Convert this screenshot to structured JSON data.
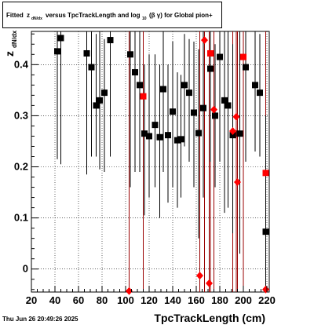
{
  "chart_data": {
    "type": "scatter",
    "title": {
      "prefix": "Fitted",
      "zsym": "z",
      "zsub": "dN/dx",
      "mid": "versus TpcTrackLength and log",
      "logsub": "10",
      "paren": "(β γ) for Global pion+"
    },
    "xlabel": "TpcTrackLength (cm)",
    "ylabel": "z",
    "ylabel_sub": "dN/dx",
    "xlim": [
      20,
      222
    ],
    "ylim": [
      -0.045,
      0.465
    ],
    "x_ticks": [
      20,
      40,
      60,
      80,
      100,
      120,
      140,
      160,
      180,
      200,
      220
    ],
    "y_ticks": [
      0,
      0.1,
      0.2,
      0.3,
      0.4
    ],
    "y_tick_labels": [
      "0",
      "0.1",
      "0.2",
      "0.3",
      "0.4"
    ],
    "grid": true,
    "timestamp": "Thu Jun 26 20:49:26 2025",
    "colors": {
      "black_series": "#000000",
      "red_series": "#ff0000",
      "red_line": "#990000"
    },
    "series": [
      {
        "marker": "square",
        "color": "#000000",
        "points": [
          {
            "x": 42,
            "y": 0.426,
            "lo": 0.215,
            "hi": 0.465
          },
          {
            "x": 45,
            "y": 0.452,
            "lo": 0.205,
            "hi": 0.465
          },
          {
            "x": 67,
            "y": 0.422,
            "lo": 0.185,
            "hi": 0.465
          },
          {
            "x": 71,
            "y": 0.395,
            "lo": 0.22,
            "hi": 0.465
          },
          {
            "x": 75,
            "y": 0.32,
            "lo": 0.22,
            "hi": 0.46
          },
          {
            "x": 78,
            "y": 0.33,
            "lo": 0.195,
            "hi": 0.465
          },
          {
            "x": 82,
            "y": 0.345,
            "lo": 0.19,
            "hi": 0.45
          },
          {
            "x": 87,
            "y": 0.448,
            "lo": 0.22,
            "hi": 0.465
          },
          {
            "x": 104,
            "y": 0.42,
            "lo": 0.16,
            "hi": 0.465
          },
          {
            "x": 108,
            "y": 0.385,
            "lo": 0.19,
            "hi": 0.465
          },
          {
            "x": 112,
            "y": 0.36,
            "lo": 0.19,
            "hi": 0.465
          },
          {
            "x": 116,
            "y": 0.265,
            "lo": 0.105,
            "hi": 0.4
          },
          {
            "x": 120,
            "y": 0.26,
            "lo": 0.14,
            "hi": 0.42
          },
          {
            "x": 125,
            "y": 0.282,
            "lo": 0.16,
            "hi": 0.42
          },
          {
            "x": 129,
            "y": 0.258,
            "lo": 0.1,
            "hi": 0.4
          },
          {
            "x": 132,
            "y": 0.352,
            "lo": 0.19,
            "hi": 0.465
          },
          {
            "x": 136,
            "y": 0.262,
            "lo": 0.13,
            "hi": 0.4
          },
          {
            "x": 140,
            "y": 0.308,
            "lo": 0.16,
            "hi": 0.445
          },
          {
            "x": 144,
            "y": 0.252,
            "lo": 0.12,
            "hi": 0.385
          },
          {
            "x": 147,
            "y": 0.254,
            "lo": 0.14,
            "hi": 0.38
          },
          {
            "x": 150,
            "y": 0.36,
            "lo": 0.24,
            "hi": 0.46
          },
          {
            "x": 154,
            "y": 0.345,
            "lo": 0.21,
            "hi": 0.45
          },
          {
            "x": 158,
            "y": 0.306,
            "lo": 0.16,
            "hi": 0.445
          },
          {
            "x": 162,
            "y": 0.266,
            "lo": 0.06,
            "hi": 0.43
          },
          {
            "x": 166,
            "y": 0.315,
            "lo": 0.14,
            "hi": 0.465
          },
          {
            "x": 172,
            "y": 0.392,
            "lo": 0.21,
            "hi": 0.465
          },
          {
            "x": 176,
            "y": 0.3,
            "lo": 0.16,
            "hi": 0.44
          },
          {
            "x": 180,
            "y": 0.415,
            "lo": 0.21,
            "hi": 0.465
          },
          {
            "x": 184,
            "y": 0.33,
            "lo": 0.11,
            "hi": 0.465
          },
          {
            "x": 187,
            "y": 0.32,
            "lo": 0.12,
            "hi": 0.465
          },
          {
            "x": 191,
            "y": 0.262,
            "lo": 0.07,
            "hi": 0.44
          },
          {
            "x": 197,
            "y": 0.265,
            "lo": 0.03,
            "hi": 0.465
          },
          {
            "x": 202,
            "y": 0.395,
            "lo": 0.21,
            "hi": 0.465
          },
          {
            "x": 210,
            "y": 0.36,
            "lo": 0.23,
            "hi": 0.465
          },
          {
            "x": 214,
            "y": 0.345,
            "lo": 0.22,
            "hi": 0.46
          },
          {
            "x": 219,
            "y": 0.073,
            "lo": -0.045,
            "hi": 0.3
          }
        ]
      },
      {
        "marker": "square",
        "color": "#ff0000",
        "points": [
          {
            "x": 115,
            "y": 0.338,
            "lo": -0.045,
            "hi": 0.465
          },
          {
            "x": 172,
            "y": 0.422,
            "lo": -0.045,
            "hi": 0.465
          },
          {
            "x": 200,
            "y": 0.415,
            "lo": -0.045,
            "hi": 0.465
          },
          {
            "x": 219,
            "y": 0.188,
            "lo": -0.045,
            "hi": 0.465
          }
        ]
      },
      {
        "marker": "diamond",
        "color": "#ff0000",
        "points": [
          {
            "x": 103,
            "y": -0.043,
            "lo": -0.045,
            "hi": 0.465
          },
          {
            "x": 163,
            "y": -0.013,
            "lo": -0.045,
            "hi": 0.465
          },
          {
            "x": 167,
            "y": 0.448,
            "lo": -0.045,
            "hi": 0.465
          },
          {
            "x": 171,
            "y": -0.028,
            "lo": -0.045,
            "hi": 0.465
          },
          {
            "x": 175,
            "y": 0.312,
            "lo": -0.045,
            "hi": 0.465
          },
          {
            "x": 191,
            "y": 0.27,
            "lo": -0.045,
            "hi": 0.465
          },
          {
            "x": 194,
            "y": 0.298,
            "lo": -0.045,
            "hi": 0.465
          },
          {
            "x": 195,
            "y": 0.17,
            "lo": -0.045,
            "hi": 0.465
          },
          {
            "x": 219,
            "y": -0.04,
            "lo": -0.045,
            "hi": 0.465
          }
        ]
      }
    ]
  }
}
